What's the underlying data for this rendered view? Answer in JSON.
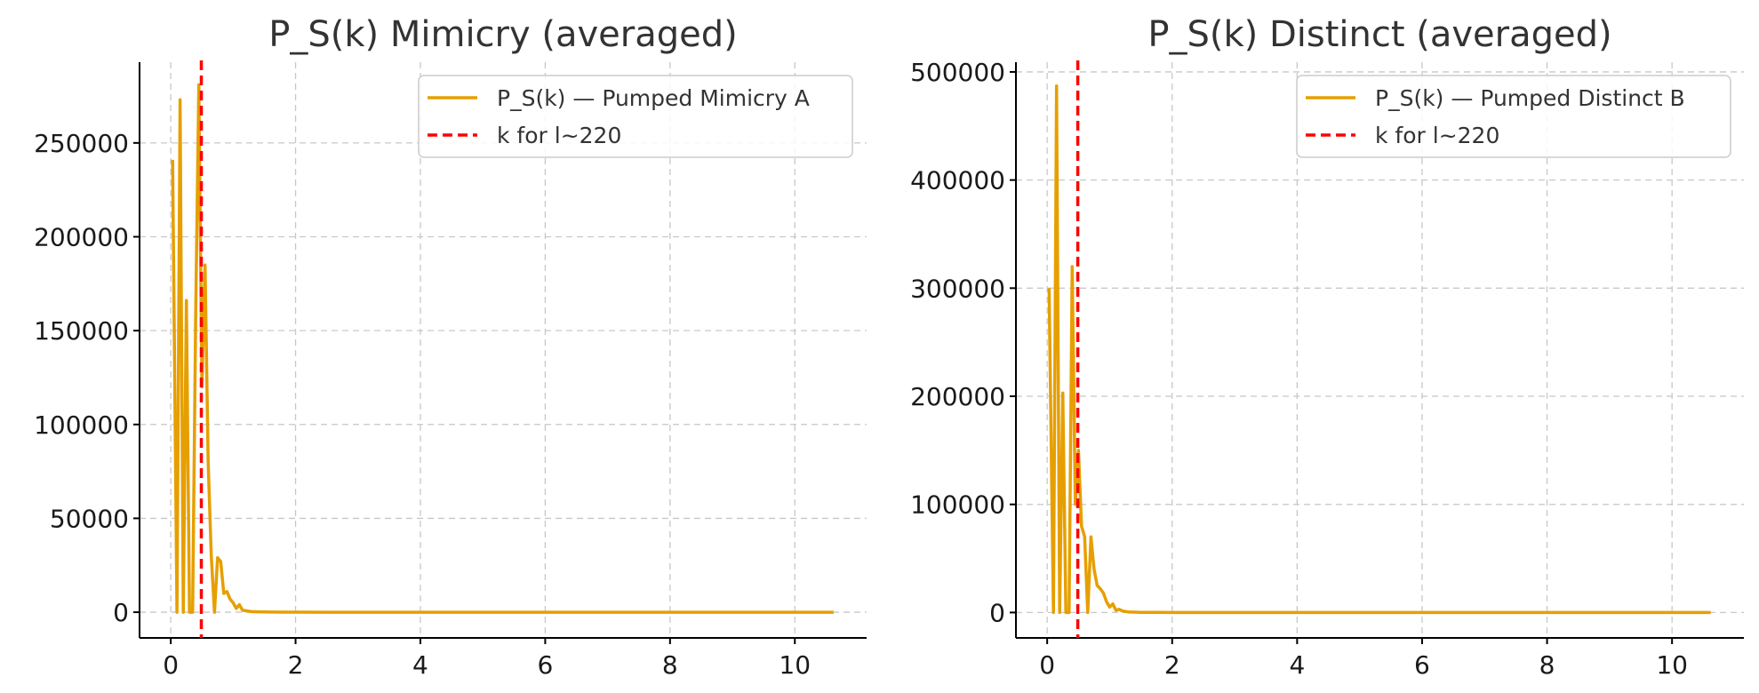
{
  "chart_data": [
    {
      "type": "line",
      "title": "P_S(k) Mimicry (averaged)",
      "xlabel": "",
      "ylabel": "",
      "xlim": [
        -0.5,
        11.15
      ],
      "ylim": [
        -13700,
        293000
      ],
      "xticks": [
        0,
        2,
        4,
        6,
        8,
        10
      ],
      "xtick_labels": [
        "0",
        "2",
        "4",
        "6",
        "8",
        "10"
      ],
      "yticks": [
        0,
        50000,
        100000,
        150000,
        200000,
        250000
      ],
      "ytick_labels": [
        "0",
        "50000",
        "100000",
        "150000",
        "200000",
        "250000"
      ],
      "grid": true,
      "legend_position": "top-right",
      "series": [
        {
          "name": "P_S(k) — Pumped Mimicry A",
          "color": "#E69F00",
          "x": [
            0.03,
            0.1,
            0.15,
            0.2,
            0.25,
            0.3,
            0.35,
            0.4,
            0.45,
            0.5,
            0.55,
            0.6,
            0.65,
            0.7,
            0.75,
            0.8,
            0.85,
            0.9,
            0.95,
            1.0,
            1.05,
            1.1,
            1.15,
            1.2,
            1.25,
            1.3,
            1.4,
            1.5,
            1.6,
            1.8,
            2.0,
            2.5,
            3,
            4,
            5,
            6,
            7,
            8,
            9,
            10,
            10.62
          ],
          "y": [
            241000,
            0,
            273000,
            0,
            166000,
            0,
            0,
            160000,
            281000,
            120000,
            185000,
            80000,
            30000,
            0,
            29000,
            27000,
            10000,
            11000,
            7000,
            5000,
            2000,
            4000,
            1000,
            800,
            500,
            300,
            200,
            100,
            50,
            20,
            10,
            0,
            0,
            0,
            0,
            0,
            0,
            0,
            0,
            0,
            0
          ]
        },
        {
          "name": "k for l~220",
          "color": "#FF0000",
          "type": "vline",
          "x": 0.49
        }
      ]
    },
    {
      "type": "line",
      "title": "P_S(k) Distinct (averaged)",
      "xlabel": "",
      "ylabel": "",
      "xlim": [
        -0.5,
        11.15
      ],
      "ylim": [
        -23500,
        509000
      ],
      "xticks": [
        0,
        2,
        4,
        6,
        8,
        10
      ],
      "xtick_labels": [
        "0",
        "2",
        "4",
        "6",
        "8",
        "10"
      ],
      "yticks": [
        0,
        100000,
        200000,
        300000,
        400000,
        500000
      ],
      "ytick_labels": [
        "0",
        "100000",
        "200000",
        "300000",
        "400000",
        "500000"
      ],
      "grid": true,
      "legend_position": "top-right",
      "series": [
        {
          "name": "P_S(k) — Pumped Distinct B",
          "color": "#E69F00",
          "x": [
            0.03,
            0.1,
            0.15,
            0.2,
            0.25,
            0.3,
            0.35,
            0.4,
            0.45,
            0.5,
            0.55,
            0.6,
            0.65,
            0.7,
            0.75,
            0.8,
            0.85,
            0.9,
            0.95,
            1.0,
            1.05,
            1.1,
            1.15,
            1.2,
            1.25,
            1.3,
            1.4,
            1.5,
            1.6,
            1.8,
            2.0,
            2.5,
            3,
            4,
            5,
            6,
            7,
            8,
            9,
            10,
            10.62
          ],
          "y": [
            300000,
            0,
            487000,
            0,
            203000,
            0,
            0,
            320000,
            100000,
            150000,
            80000,
            70000,
            0,
            70000,
            40000,
            25000,
            22000,
            18000,
            10000,
            5000,
            8000,
            2000,
            3000,
            1500,
            1000,
            500,
            300,
            200,
            100,
            50,
            20,
            0,
            0,
            0,
            0,
            0,
            0,
            0,
            0,
            0,
            0
          ]
        },
        {
          "name": "k for l~220",
          "color": "#FF0000",
          "type": "vline",
          "x": 0.49
        }
      ]
    }
  ]
}
